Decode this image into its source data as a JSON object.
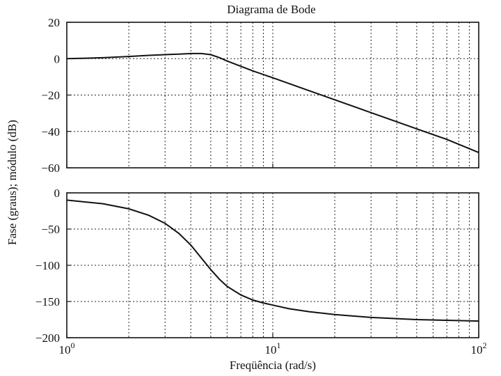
{
  "chart_data": {
    "type": "line",
    "title": "Diagrama de Bode",
    "xlabel": "Freqüência (rad/s)",
    "ylabel": "Fase (graus); módulo (dB)",
    "x_scale": "log",
    "x_ticks": [
      {
        "value": 1,
        "base": "10",
        "exp": "0"
      },
      {
        "value": 10,
        "base": "10",
        "exp": "1"
      },
      {
        "value": 100,
        "base": "10",
        "exp": "2"
      }
    ],
    "xlim": [
      1,
      100
    ],
    "grid": true,
    "panels": [
      {
        "id": "magnitude",
        "ylim": [
          -60,
          20
        ],
        "yticks": [
          20,
          0,
          -20,
          -40,
          -60
        ],
        "ytick_labels": [
          "20",
          "0",
          "−20",
          "−40",
          "−60"
        ],
        "series": [
          {
            "x": [
              1,
              1.5,
              2,
              2.5,
              3,
              3.5,
              4,
              4.5,
              5,
              5.5,
              6,
              7,
              8,
              10,
              15,
              20,
              30,
              50,
              70,
              100
            ],
            "values": [
              0,
              0.5,
              1.2,
              1.8,
              2.2,
              2.5,
              2.8,
              2.8,
              2.2,
              0.6,
              -1.3,
              -4.2,
              -6.7,
              -10.5,
              -17.6,
              -22.6,
              -29.7,
              -38.6,
              -44.4,
              -51.6
            ]
          }
        ]
      },
      {
        "id": "phase",
        "ylim": [
          -200,
          0
        ],
        "yticks": [
          0,
          -50,
          -100,
          -150,
          -200
        ],
        "ytick_labels": [
          "0",
          "−50",
          "−100",
          "−150",
          "−200"
        ],
        "series": [
          {
            "x": [
              1,
              1.5,
              2,
              2.5,
              3,
              3.5,
              4,
              4.5,
              5,
              5.5,
              6,
              7,
              8,
              9,
              10,
              12,
              15,
              20,
              30,
              50,
              70,
              100
            ],
            "values": [
              -10,
              -15,
              -22,
              -31,
              -42,
              -56,
              -72,
              -90,
              -106,
              -119,
              -129,
              -141,
              -148,
              -152,
              -155,
              -160,
              -164,
              -168,
              -172,
              -175,
              -176,
              -177
            ]
          }
        ]
      }
    ]
  }
}
